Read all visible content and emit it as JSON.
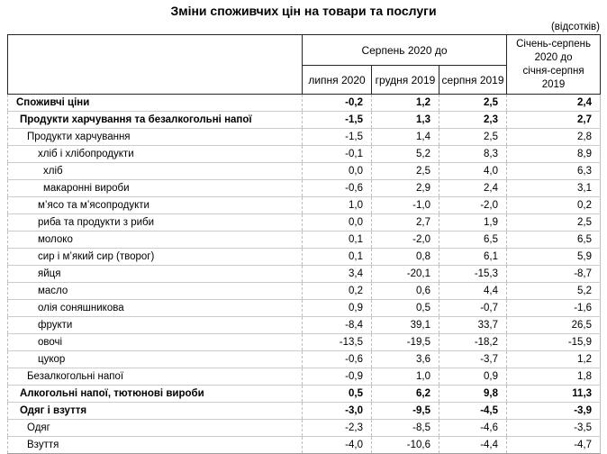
{
  "title": "Зміни споживчих цін на товари та послуги",
  "unit_note": "(відсотків)",
  "table": {
    "group_header": "Серпень 2020 до",
    "sub_headers": [
      "липня 2020",
      "грудня 2019",
      "серпня 2019"
    ],
    "ytd_header": "Січень-серпень\n2020 до\nсічня-серпня\n2019",
    "rows": [
      {
        "label": "Споживчі ціни",
        "level": 0,
        "bold": true,
        "values": [
          "-0,2",
          "1,2",
          "2,5",
          "2,4"
        ]
      },
      {
        "label": "Продукти харчування та безалкогольні напої",
        "level": 1,
        "bold": true,
        "values": [
          "-1,5",
          "1,3",
          "2,3",
          "2,7"
        ]
      },
      {
        "label": "Продукти харчування",
        "level": 2,
        "bold": false,
        "values": [
          "-1,5",
          "1,4",
          "2,5",
          "2,8"
        ]
      },
      {
        "label": "хліб і хлібопродукти",
        "level": 3,
        "bold": false,
        "values": [
          "-0,1",
          "5,2",
          "8,3",
          "8,9"
        ]
      },
      {
        "label": "хліб",
        "level": 4,
        "bold": false,
        "values": [
          "0,0",
          "2,5",
          "4,0",
          "6,3"
        ]
      },
      {
        "label": "макаронні вироби",
        "level": 4,
        "bold": false,
        "values": [
          "-0,6",
          "2,9",
          "2,4",
          "3,1"
        ]
      },
      {
        "label": "м’ясо та м’ясопродукти",
        "level": 3,
        "bold": false,
        "values": [
          "1,0",
          "-1,0",
          "-2,0",
          "0,2"
        ]
      },
      {
        "label": "риба та продукти з риби",
        "level": 3,
        "bold": false,
        "values": [
          "0,0",
          "2,7",
          "1,9",
          "2,5"
        ]
      },
      {
        "label": "молоко",
        "level": 3,
        "bold": false,
        "values": [
          "0,1",
          "-2,0",
          "6,5",
          "6,5"
        ]
      },
      {
        "label": "сир і м’який сир (творог)",
        "level": 3,
        "bold": false,
        "values": [
          "0,1",
          "0,8",
          "6,1",
          "5,9"
        ]
      },
      {
        "label": "яйця",
        "level": 3,
        "bold": false,
        "values": [
          "3,4",
          "-20,1",
          "-15,3",
          "-8,7"
        ]
      },
      {
        "label": "масло",
        "level": 3,
        "bold": false,
        "values": [
          "0,2",
          "0,6",
          "4,4",
          "5,2"
        ]
      },
      {
        "label": "олія соняшникова",
        "level": 3,
        "bold": false,
        "values": [
          "0,9",
          "0,5",
          "-0,7",
          "-1,6"
        ]
      },
      {
        "label": "фрукти",
        "level": 3,
        "bold": false,
        "values": [
          "-8,4",
          "39,1",
          "33,7",
          "26,5"
        ]
      },
      {
        "label": "овочі",
        "level": 3,
        "bold": false,
        "values": [
          "-13,5",
          "-19,5",
          "-18,2",
          "-15,9"
        ]
      },
      {
        "label": "цукор",
        "level": 3,
        "bold": false,
        "values": [
          "-0,6",
          "3,6",
          "-3,7",
          "1,2"
        ]
      },
      {
        "label": "Безалкогольні напої",
        "level": 2,
        "bold": false,
        "values": [
          "-0,9",
          "1,0",
          "0,9",
          "1,8"
        ]
      },
      {
        "label": "Алкогольні напої, тютюнові вироби",
        "level": 1,
        "bold": true,
        "values": [
          "0,5",
          "6,2",
          "9,8",
          "11,3"
        ]
      },
      {
        "label": "Одяг і взуття",
        "level": 1,
        "bold": true,
        "values": [
          "-3,0",
          "-9,5",
          "-4,5",
          "-3,9"
        ]
      },
      {
        "label": "Одяг",
        "level": 2,
        "bold": false,
        "values": [
          "-2,3",
          "-8,5",
          "-4,6",
          "-3,5"
        ]
      },
      {
        "label": "Взуття",
        "level": 2,
        "bold": false,
        "values": [
          "-4,0",
          "-10,6",
          "-4,4",
          "-4,7"
        ]
      }
    ]
  }
}
